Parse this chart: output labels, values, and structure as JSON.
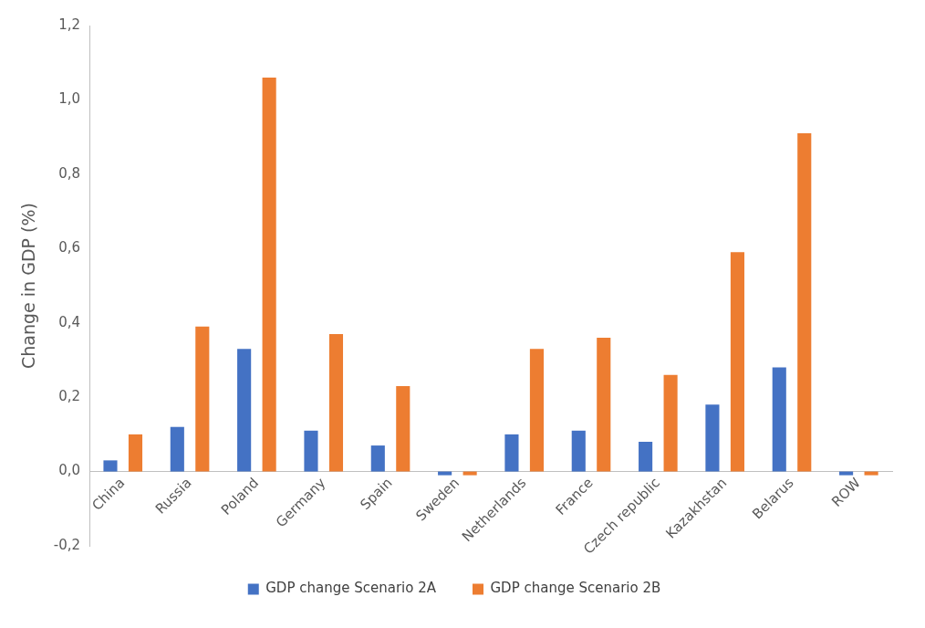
{
  "chart_data": {
    "type": "bar",
    "ylabel": "Change in GDP (%)",
    "categories": [
      "China",
      "Russia",
      "Poland",
      "Germany",
      "Spain",
      "Sweden",
      "Netherlands",
      "France",
      "Czech republic",
      "Kazakhstan",
      "Belarus",
      "ROW"
    ],
    "series": [
      {
        "name": "GDP change Scenario 2A",
        "color": "#4472c4",
        "values": [
          0.03,
          0.12,
          0.33,
          0.11,
          0.07,
          -0.01,
          0.1,
          0.11,
          0.08,
          0.18,
          0.28,
          -0.01
        ]
      },
      {
        "name": "GDP change Scenario 2B",
        "color": "#ed7d31",
        "values": [
          0.1,
          0.39,
          1.06,
          0.37,
          0.23,
          -0.01,
          0.33,
          0.36,
          0.26,
          0.59,
          0.91,
          -0.01
        ]
      }
    ],
    "ylim": [
      -0.2,
      1.2
    ],
    "yticks": [
      {
        "value": -0.2,
        "label": "-0,2"
      },
      {
        "value": 0,
        "label": "0,0"
      },
      {
        "value": 0.2,
        "label": "0,2"
      },
      {
        "value": 0.4,
        "label": "0,4"
      },
      {
        "value": 0.6,
        "label": "0,6"
      },
      {
        "value": 0.8,
        "label": "0,8"
      },
      {
        "value": 1,
        "label": "1,0"
      },
      {
        "value": 1.2,
        "label": "1,2"
      }
    ],
    "grid": false,
    "legend": "bottom"
  }
}
